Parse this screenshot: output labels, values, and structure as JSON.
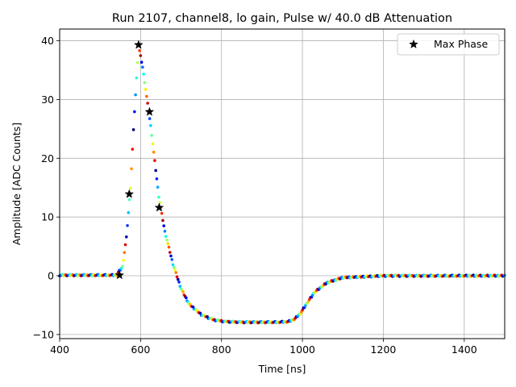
{
  "chart_data": {
    "type": "scatter",
    "title": "Run 2107, channel8, lo gain, Pulse w/ 40.0 dB Attenuation",
    "xlabel": "Time [ns]",
    "ylabel": "Amplitude [ADC Counts]",
    "xlim": [
      400,
      1500
    ],
    "ylim": [
      -10.7,
      42
    ],
    "xticks": [
      400,
      600,
      800,
      1000,
      1200,
      1400
    ],
    "yticks": [
      -10,
      0,
      10,
      20,
      30,
      40
    ],
    "grid": true,
    "legend_position": "top-right",
    "series": [
      {
        "name": "",
        "kind": "dense colored pulse samples (jet colormap by phase)",
        "colormap": "jet",
        "x": [
          400,
          450,
          500,
          540,
          555,
          565,
          575,
          585,
          595,
          605,
          615,
          625,
          635,
          645,
          660,
          680,
          700,
          720,
          750,
          780,
          810,
          850,
          900,
          940,
          965,
          980,
          995,
          1010,
          1030,
          1060,
          1100,
          1200,
          1300,
          1400,
          1500
        ],
        "values": [
          0.1,
          0.1,
          0.1,
          0.1,
          1.5,
          6.5,
          15,
          28,
          39.2,
          35.5,
          30.5,
          25.5,
          19.5,
          13.5,
          7.5,
          2.0,
          -2.2,
          -4.8,
          -6.6,
          -7.5,
          -7.8,
          -7.9,
          -7.9,
          -7.9,
          -7.8,
          -7.4,
          -6.4,
          -4.8,
          -2.8,
          -1.2,
          -0.3,
          0.0,
          0.0,
          0.0,
          0.0
        ]
      },
      {
        "name": "Max Phase",
        "marker": "star",
        "color": "#000000",
        "x": [
          548,
          572,
          595,
          622,
          646
        ],
        "values": [
          0.1,
          13.9,
          39.3,
          27.9,
          11.6
        ]
      }
    ]
  }
}
